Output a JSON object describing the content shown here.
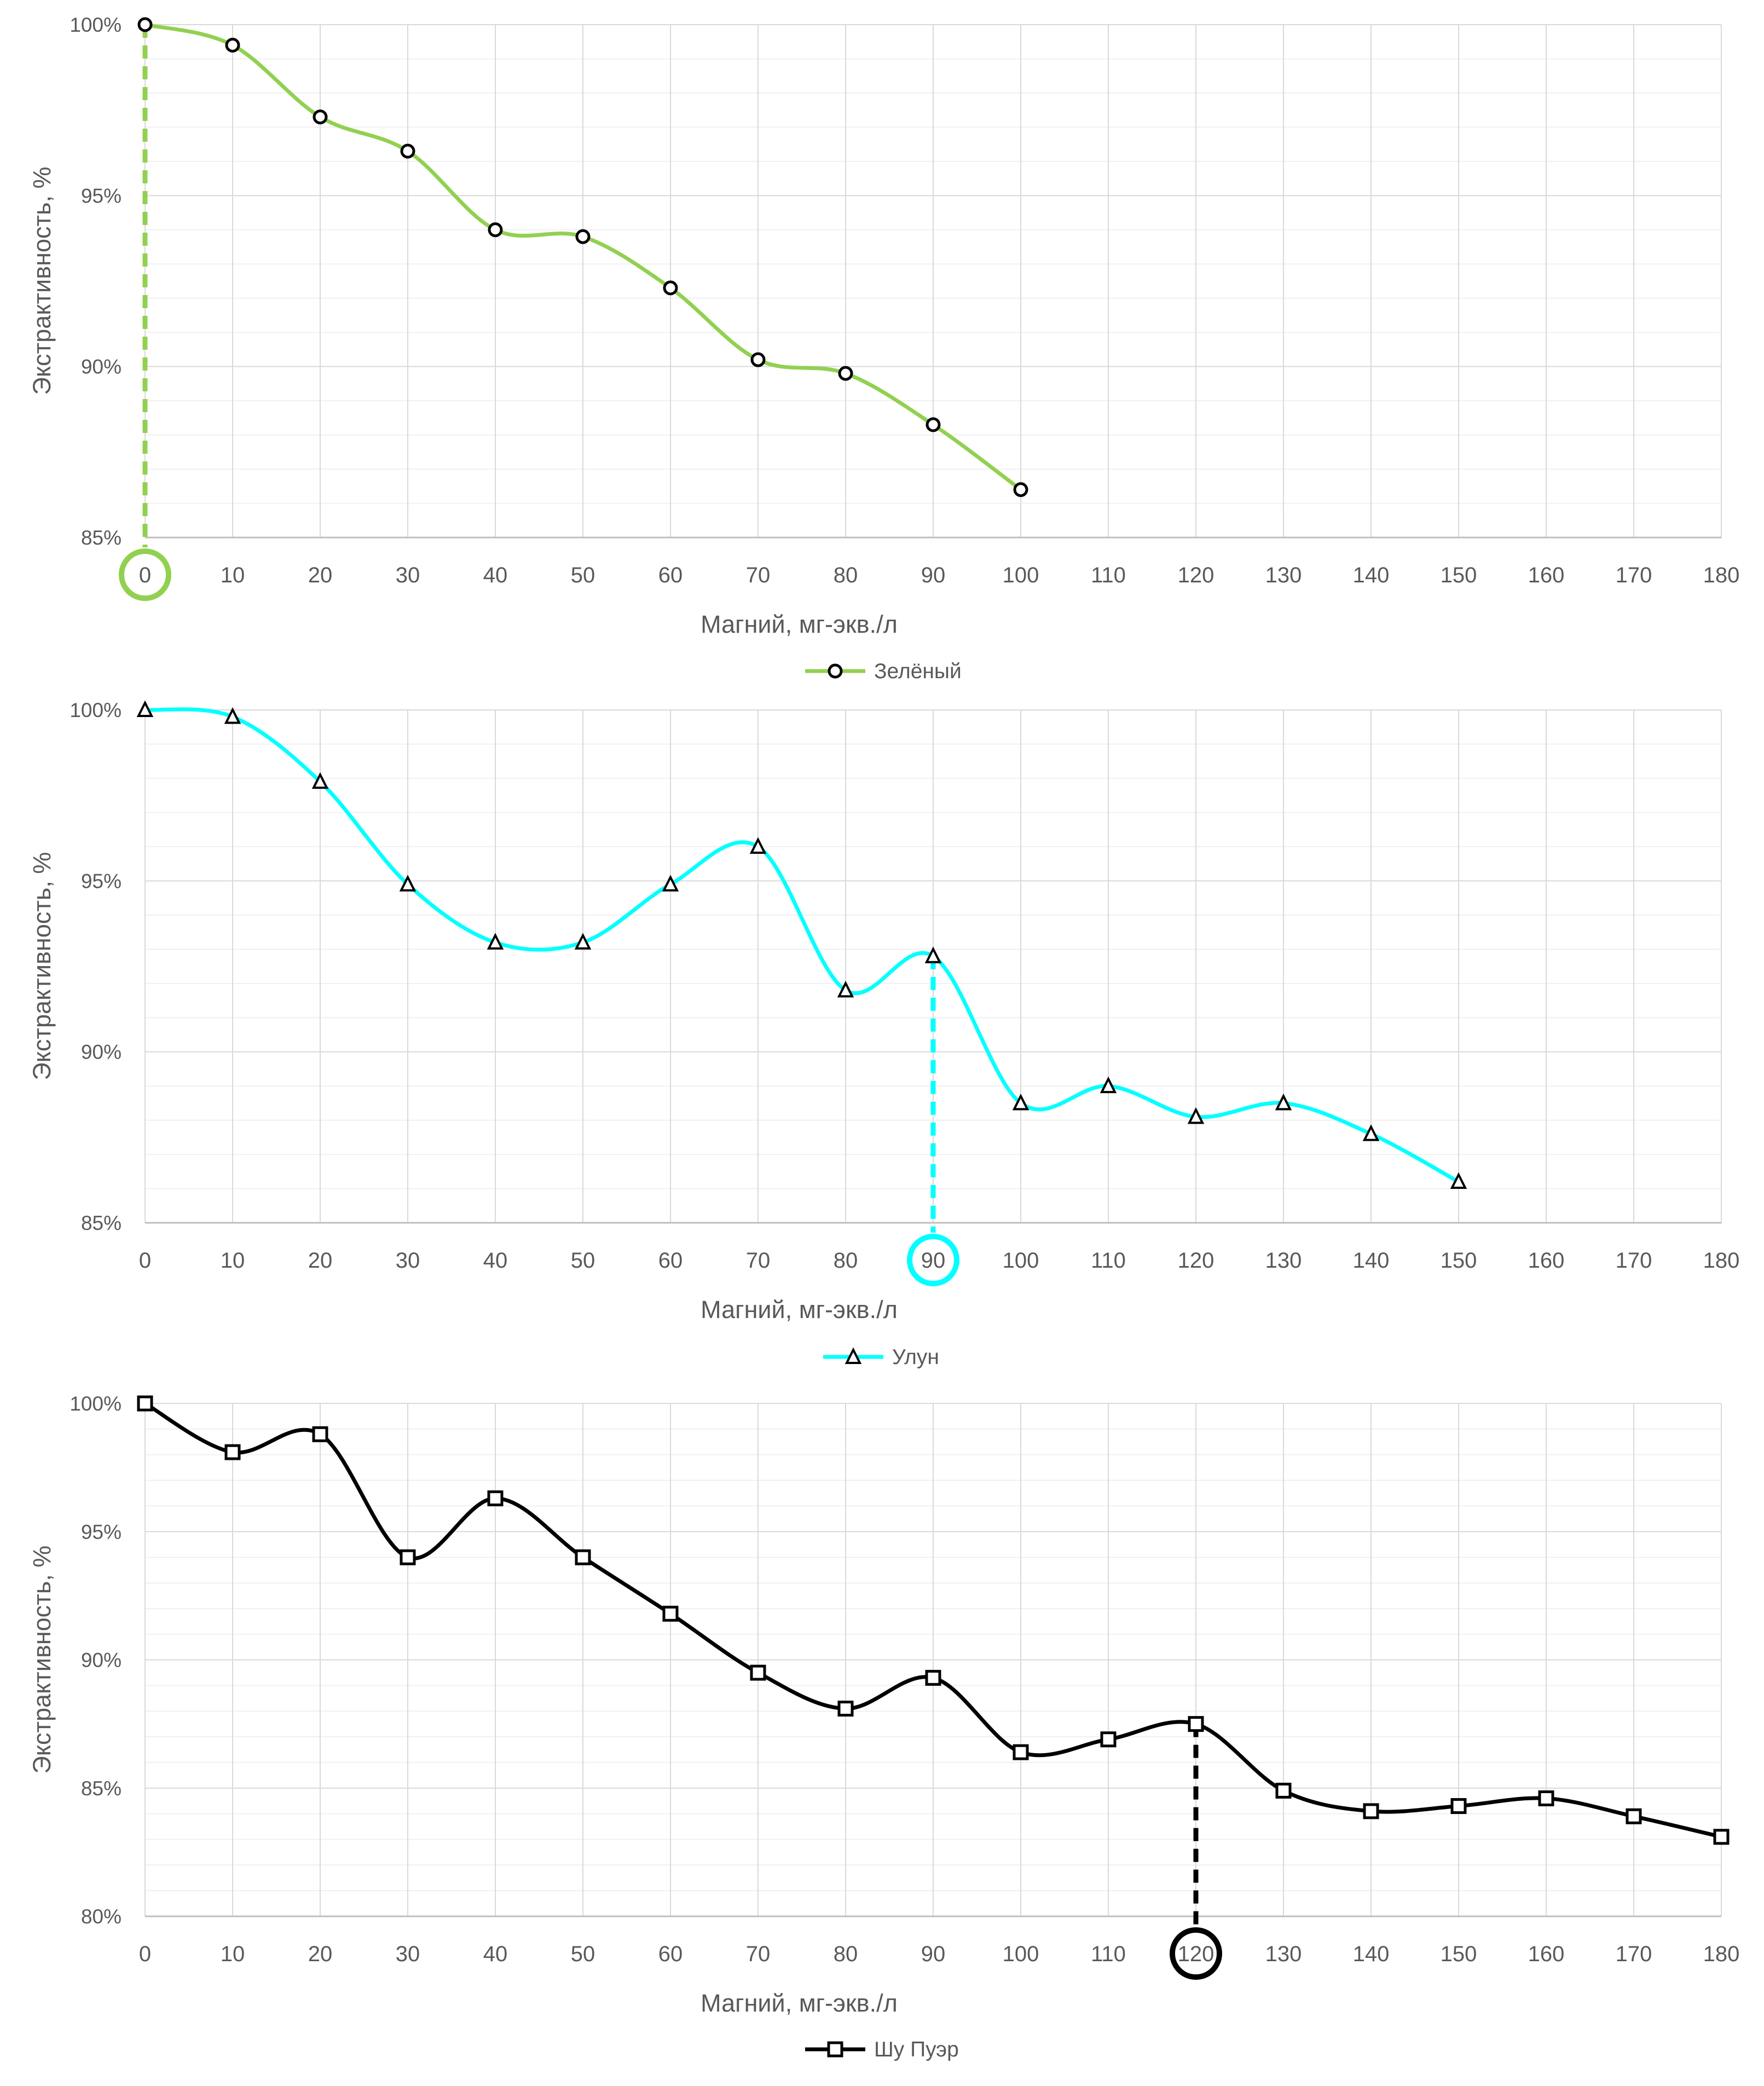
{
  "chart_data": [
    {
      "type": "line",
      "xlabel": "Магний, мг-экв./л",
      "ylabel": "Экстрактивность, %",
      "x_ticks": [
        "0",
        "10",
        "20",
        "30",
        "40",
        "50",
        "60",
        "70",
        "80",
        "90",
        "100",
        "110",
        "120",
        "130",
        "140",
        "150",
        "160",
        "170",
        "180"
      ],
      "y_ticks": [
        "85%",
        "90%",
        "95%",
        "100%"
      ],
      "xlim": [
        0,
        180
      ],
      "ylim": [
        85,
        100
      ],
      "grid": true,
      "legend_position": "bottom",
      "series": [
        {
          "name": "Зелёный",
          "color": "#92d050",
          "marker": "circle",
          "x": [
            0,
            10,
            20,
            30,
            40,
            50,
            60,
            70,
            80,
            90,
            100
          ],
          "y": [
            100,
            99.4,
            97.3,
            96.3,
            94.0,
            93.8,
            92.3,
            90.2,
            89.8,
            88.3,
            86.4
          ]
        }
      ],
      "highlight": {
        "x_label": "0",
        "x": 0,
        "y": 100,
        "color": "#92d050"
      }
    },
    {
      "type": "line",
      "xlabel": "Магний, мг-экв./л",
      "ylabel": "Экстрактивность, %",
      "x_ticks": [
        "0",
        "10",
        "20",
        "30",
        "40",
        "50",
        "60",
        "70",
        "80",
        "90",
        "100",
        "110",
        "120",
        "130",
        "140",
        "150",
        "160",
        "170",
        "180"
      ],
      "y_ticks": [
        "85%",
        "90%",
        "95%",
        "100%"
      ],
      "xlim": [
        0,
        180
      ],
      "ylim": [
        85,
        100
      ],
      "grid": true,
      "legend_position": "bottom",
      "series": [
        {
          "name": "Улун",
          "color": "#00ffff",
          "marker": "triangle",
          "x": [
            0,
            10,
            20,
            30,
            40,
            50,
            60,
            70,
            80,
            90,
            100,
            110,
            120,
            130,
            140,
            150
          ],
          "y": [
            100,
            99.8,
            97.9,
            94.9,
            93.2,
            93.2,
            94.9,
            96.0,
            91.8,
            92.8,
            88.5,
            89.0,
            88.1,
            88.5,
            87.6,
            86.2
          ]
        }
      ],
      "highlight": {
        "x_label": "90",
        "x": 90,
        "y": 92.8,
        "color": "#00ffff"
      }
    },
    {
      "type": "line",
      "xlabel": "Магний, мг-экв./л",
      "ylabel": "Экстрактивность, %",
      "x_ticks": [
        "0",
        "10",
        "20",
        "30",
        "40",
        "50",
        "60",
        "70",
        "80",
        "90",
        "100",
        "110",
        "120",
        "130",
        "140",
        "150",
        "160",
        "170",
        "180"
      ],
      "y_ticks": [
        "80%",
        "85%",
        "90%",
        "95%",
        "100%"
      ],
      "xlim": [
        0,
        180
      ],
      "ylim": [
        80,
        100
      ],
      "grid": true,
      "legend_position": "bottom",
      "series": [
        {
          "name": "Шу Пуэр",
          "color": "#000000",
          "marker": "square",
          "x": [
            0,
            10,
            20,
            30,
            40,
            50,
            60,
            70,
            80,
            90,
            100,
            110,
            120,
            130,
            140,
            150,
            160,
            170,
            180
          ],
          "y": [
            100,
            98.1,
            98.8,
            94.0,
            96.3,
            94.0,
            91.8,
            89.5,
            88.1,
            89.3,
            86.4,
            86.9,
            87.5,
            84.9,
            84.1,
            84.3,
            84.6,
            83.9,
            83.1
          ]
        }
      ],
      "highlight": {
        "x_label": "120",
        "x": 120,
        "y": 87.5,
        "color": "#000000"
      }
    }
  ]
}
